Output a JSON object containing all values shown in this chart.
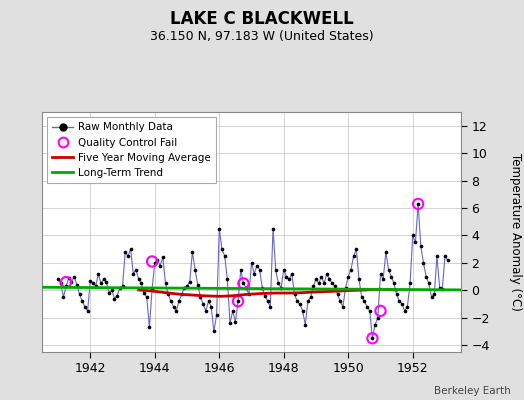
{
  "title": "LAKE C BLACKWELL",
  "subtitle": "36.150 N, 97.183 W (United States)",
  "ylabel": "Temperature Anomaly (°C)",
  "credit": "Berkeley Earth",
  "xlim": [
    1940.5,
    1953.5
  ],
  "ylim": [
    -4.5,
    13
  ],
  "yticks": [
    -4,
    -2,
    0,
    2,
    4,
    6,
    8,
    10,
    12
  ],
  "xticks": [
    1942,
    1944,
    1946,
    1948,
    1950,
    1952
  ],
  "bg_color": "#e0e0e0",
  "plot_bg_color": "#ffffff",
  "raw_color": "#6666cc",
  "raw_line_color": "#6666cc",
  "ma_color": "#cc0000",
  "trend_color": "#00aa00",
  "qc_color": "#ff00ff",
  "raw_data": [
    [
      1941.0,
      0.8
    ],
    [
      1941.083,
      0.5
    ],
    [
      1941.167,
      -0.5
    ],
    [
      1941.25,
      0.3
    ],
    [
      1941.333,
      0.9
    ],
    [
      1941.417,
      0.6
    ],
    [
      1941.5,
      1.0
    ],
    [
      1941.583,
      0.4
    ],
    [
      1941.667,
      -0.3
    ],
    [
      1941.75,
      -0.8
    ],
    [
      1941.833,
      -1.2
    ],
    [
      1941.917,
      -1.5
    ],
    [
      1942.0,
      0.7
    ],
    [
      1942.083,
      0.5
    ],
    [
      1942.167,
      0.3
    ],
    [
      1942.25,
      1.2
    ],
    [
      1942.333,
      0.5
    ],
    [
      1942.417,
      0.8
    ],
    [
      1942.5,
      0.6
    ],
    [
      1942.583,
      -0.2
    ],
    [
      1942.667,
      0.0
    ],
    [
      1942.75,
      -0.6
    ],
    [
      1942.833,
      -0.4
    ],
    [
      1942.917,
      0.2
    ],
    [
      1943.0,
      0.3
    ],
    [
      1943.083,
      2.8
    ],
    [
      1943.167,
      2.5
    ],
    [
      1943.25,
      3.0
    ],
    [
      1943.333,
      1.2
    ],
    [
      1943.417,
      1.5
    ],
    [
      1943.5,
      0.8
    ],
    [
      1943.583,
      0.5
    ],
    [
      1943.667,
      -0.2
    ],
    [
      1943.75,
      -0.5
    ],
    [
      1943.833,
      -2.7
    ],
    [
      1943.917,
      0.1
    ],
    [
      1944.0,
      2.0
    ],
    [
      1944.083,
      2.2
    ],
    [
      1944.167,
      1.8
    ],
    [
      1944.25,
      2.4
    ],
    [
      1944.333,
      0.5
    ],
    [
      1944.417,
      -0.3
    ],
    [
      1944.5,
      -0.8
    ],
    [
      1944.583,
      -1.2
    ],
    [
      1944.667,
      -1.5
    ],
    [
      1944.75,
      -0.8
    ],
    [
      1944.833,
      -0.3
    ],
    [
      1944.917,
      0.2
    ],
    [
      1945.0,
      0.3
    ],
    [
      1945.083,
      0.6
    ],
    [
      1945.167,
      2.8
    ],
    [
      1945.25,
      1.5
    ],
    [
      1945.333,
      0.4
    ],
    [
      1945.417,
      -0.5
    ],
    [
      1945.5,
      -1.0
    ],
    [
      1945.583,
      -1.5
    ],
    [
      1945.667,
      -0.8
    ],
    [
      1945.75,
      -1.2
    ],
    [
      1945.833,
      -3.0
    ],
    [
      1945.917,
      -1.8
    ],
    [
      1946.0,
      4.5
    ],
    [
      1946.083,
      3.0
    ],
    [
      1946.167,
      2.5
    ],
    [
      1946.25,
      0.8
    ],
    [
      1946.333,
      -2.4
    ],
    [
      1946.417,
      -1.5
    ],
    [
      1946.5,
      -2.3
    ],
    [
      1946.583,
      -0.8
    ],
    [
      1946.667,
      1.5
    ],
    [
      1946.75,
      0.5
    ],
    [
      1946.833,
      0.2
    ],
    [
      1946.917,
      -0.3
    ],
    [
      1947.0,
      2.0
    ],
    [
      1947.083,
      1.2
    ],
    [
      1947.167,
      1.8
    ],
    [
      1947.25,
      1.5
    ],
    [
      1947.333,
      0.2
    ],
    [
      1947.417,
      -0.4
    ],
    [
      1947.5,
      -0.8
    ],
    [
      1947.583,
      -1.2
    ],
    [
      1947.667,
      4.5
    ],
    [
      1947.75,
      1.5
    ],
    [
      1947.833,
      0.5
    ],
    [
      1947.917,
      0.2
    ],
    [
      1948.0,
      1.5
    ],
    [
      1948.083,
      1.0
    ],
    [
      1948.167,
      0.8
    ],
    [
      1948.25,
      1.2
    ],
    [
      1948.333,
      -0.3
    ],
    [
      1948.417,
      -0.8
    ],
    [
      1948.5,
      -1.0
    ],
    [
      1948.583,
      -1.5
    ],
    [
      1948.667,
      -2.5
    ],
    [
      1948.75,
      -0.8
    ],
    [
      1948.833,
      -0.5
    ],
    [
      1948.917,
      0.3
    ],
    [
      1949.0,
      0.8
    ],
    [
      1949.083,
      0.5
    ],
    [
      1949.167,
      1.0
    ],
    [
      1949.25,
      0.5
    ],
    [
      1949.333,
      1.2
    ],
    [
      1949.417,
      0.8
    ],
    [
      1949.5,
      0.5
    ],
    [
      1949.583,
      0.3
    ],
    [
      1949.667,
      -0.3
    ],
    [
      1949.75,
      -0.8
    ],
    [
      1949.833,
      -1.2
    ],
    [
      1949.917,
      0.2
    ],
    [
      1950.0,
      1.0
    ],
    [
      1950.083,
      1.5
    ],
    [
      1950.167,
      2.5
    ],
    [
      1950.25,
      3.0
    ],
    [
      1950.333,
      0.8
    ],
    [
      1950.417,
      -0.5
    ],
    [
      1950.5,
      -0.8
    ],
    [
      1950.583,
      -1.2
    ],
    [
      1950.667,
      -1.5
    ],
    [
      1950.75,
      -3.5
    ],
    [
      1950.833,
      -2.5
    ],
    [
      1950.917,
      -2.0
    ],
    [
      1951.0,
      1.2
    ],
    [
      1951.083,
      0.8
    ],
    [
      1951.167,
      2.8
    ],
    [
      1951.25,
      1.5
    ],
    [
      1951.333,
      1.0
    ],
    [
      1951.417,
      0.5
    ],
    [
      1951.5,
      -0.3
    ],
    [
      1951.583,
      -0.8
    ],
    [
      1951.667,
      -1.0
    ],
    [
      1951.75,
      -1.5
    ],
    [
      1951.833,
      -1.2
    ],
    [
      1951.917,
      0.5
    ],
    [
      1952.0,
      4.0
    ],
    [
      1952.083,
      3.5
    ],
    [
      1952.167,
      6.3
    ],
    [
      1952.25,
      3.2
    ],
    [
      1952.333,
      2.0
    ],
    [
      1952.417,
      1.0
    ],
    [
      1952.5,
      0.5
    ],
    [
      1952.583,
      -0.5
    ],
    [
      1952.667,
      -0.3
    ],
    [
      1952.75,
      2.5
    ],
    [
      1952.833,
      0.2
    ],
    [
      1952.917,
      0.1
    ],
    [
      1953.0,
      2.5
    ],
    [
      1953.083,
      2.2
    ]
  ],
  "ma_data": [
    [
      1943.5,
      0.02
    ],
    [
      1943.75,
      -0.02
    ],
    [
      1944.0,
      -0.08
    ],
    [
      1944.25,
      -0.15
    ],
    [
      1944.5,
      -0.22
    ],
    [
      1944.75,
      -0.28
    ],
    [
      1945.0,
      -0.32
    ],
    [
      1945.25,
      -0.36
    ],
    [
      1945.5,
      -0.4
    ],
    [
      1945.75,
      -0.42
    ],
    [
      1946.0,
      -0.44
    ],
    [
      1946.25,
      -0.42
    ],
    [
      1946.5,
      -0.38
    ],
    [
      1946.75,
      -0.32
    ],
    [
      1947.0,
      -0.28
    ],
    [
      1947.25,
      -0.24
    ],
    [
      1947.5,
      -0.22
    ],
    [
      1947.75,
      -0.2
    ],
    [
      1948.0,
      -0.2
    ],
    [
      1948.25,
      -0.2
    ],
    [
      1948.5,
      -0.18
    ],
    [
      1948.75,
      -0.15
    ],
    [
      1949.0,
      -0.12
    ],
    [
      1949.25,
      -0.1
    ],
    [
      1949.5,
      -0.08
    ],
    [
      1949.75,
      -0.05
    ],
    [
      1950.0,
      -0.02
    ],
    [
      1950.25,
      0.0
    ],
    [
      1950.5,
      0.02
    ],
    [
      1950.75,
      0.05
    ],
    [
      1951.0,
      0.08
    ],
    [
      1951.25,
      0.05
    ],
    [
      1951.5,
      0.02
    ]
  ],
  "trend_data": [
    [
      1940.5,
      0.22
    ],
    [
      1953.5,
      0.03
    ]
  ],
  "qc_fails": [
    [
      1941.25,
      0.6
    ],
    [
      1943.917,
      2.1
    ],
    [
      1946.583,
      -0.8
    ],
    [
      1946.75,
      0.5
    ],
    [
      1950.75,
      -3.5
    ],
    [
      1951.0,
      -1.5
    ],
    [
      1952.167,
      6.3
    ]
  ],
  "figsize": [
    5.24,
    4.0
  ],
  "dpi": 100
}
